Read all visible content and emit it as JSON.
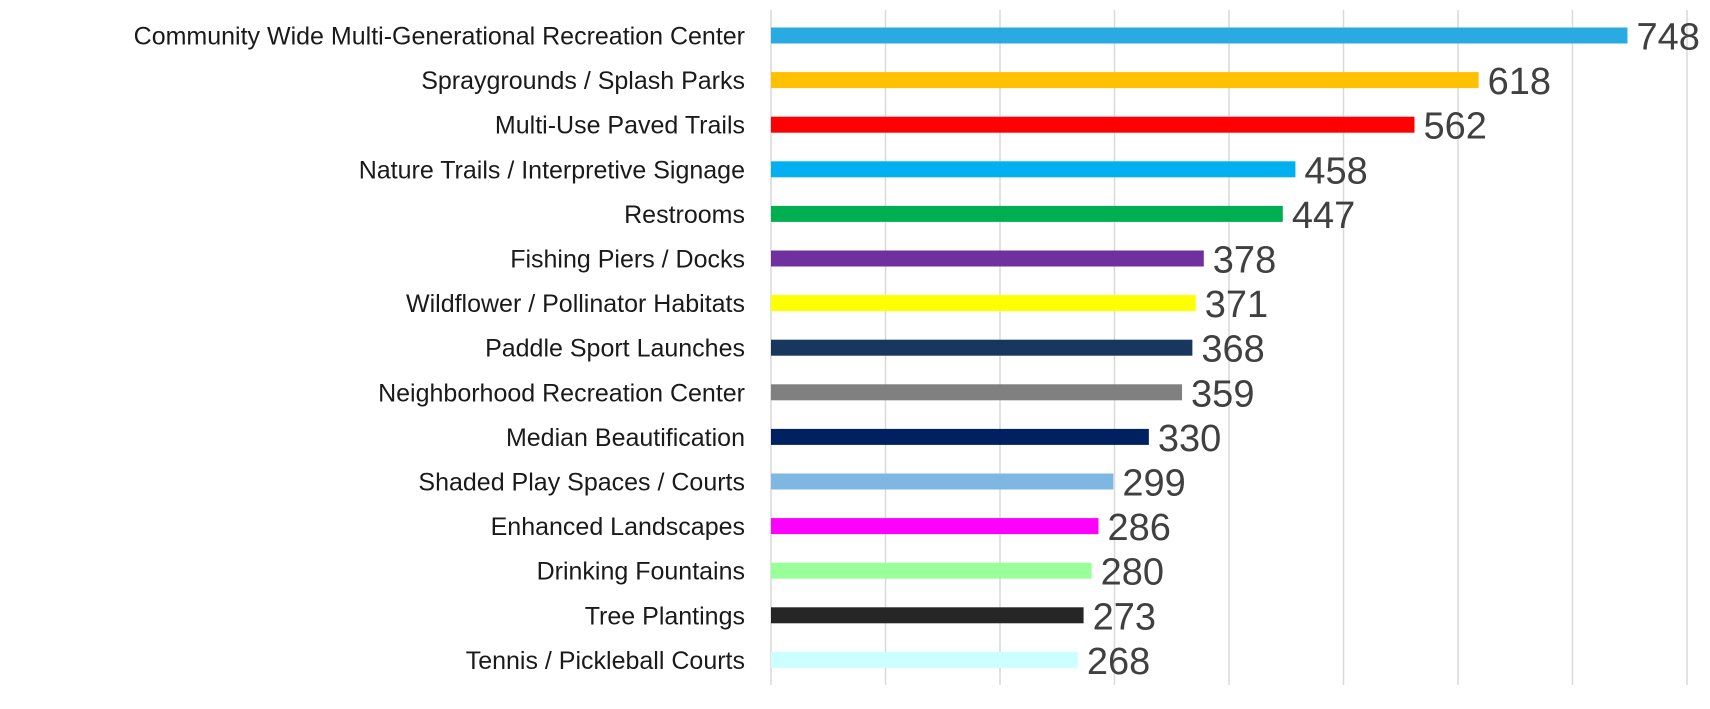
{
  "chart_data": {
    "type": "bar",
    "orientation": "horizontal",
    "categories": [
      "Community Wide Multi-Generational Recreation Center",
      "Spraygrounds / Splash Parks",
      "Multi-Use Paved Trails",
      "Nature Trails / Interpretive Signage",
      "Restrooms",
      "Fishing Piers / Docks",
      "Wildflower / Pollinator Habitats",
      "Paddle Sport Launches",
      "Neighborhood Recreation Center",
      "Median Beautification",
      "Shaded Play Spaces / Courts",
      "Enhanced Landscapes",
      "Drinking Fountains",
      "Tree Plantings",
      "Tennis / Pickleball Courts"
    ],
    "values": [
      748,
      618,
      562,
      458,
      447,
      378,
      371,
      368,
      359,
      330,
      299,
      286,
      280,
      273,
      268
    ],
    "value_labels": [
      "748",
      "618",
      "562",
      "458",
      "447",
      "378",
      "371",
      "368",
      "359",
      "330",
      "299",
      "286",
      "280",
      "273",
      "268"
    ],
    "colors": [
      "#29ABE2",
      "#FFC000",
      "#FF0000",
      "#00B0F0",
      "#00B050",
      "#7030A0",
      "#FFFF00",
      "#17375E",
      "#808080",
      "#002060",
      "#7FB7E3",
      "#FF00FF",
      "#99FF99",
      "#262626",
      "#CCFFFF"
    ],
    "xlim": [
      0,
      800
    ],
    "x_gridlines": [
      0,
      100,
      200,
      300,
      400,
      500,
      600,
      700,
      800
    ],
    "grid": true,
    "legend": "none",
    "data_labels": true
  }
}
